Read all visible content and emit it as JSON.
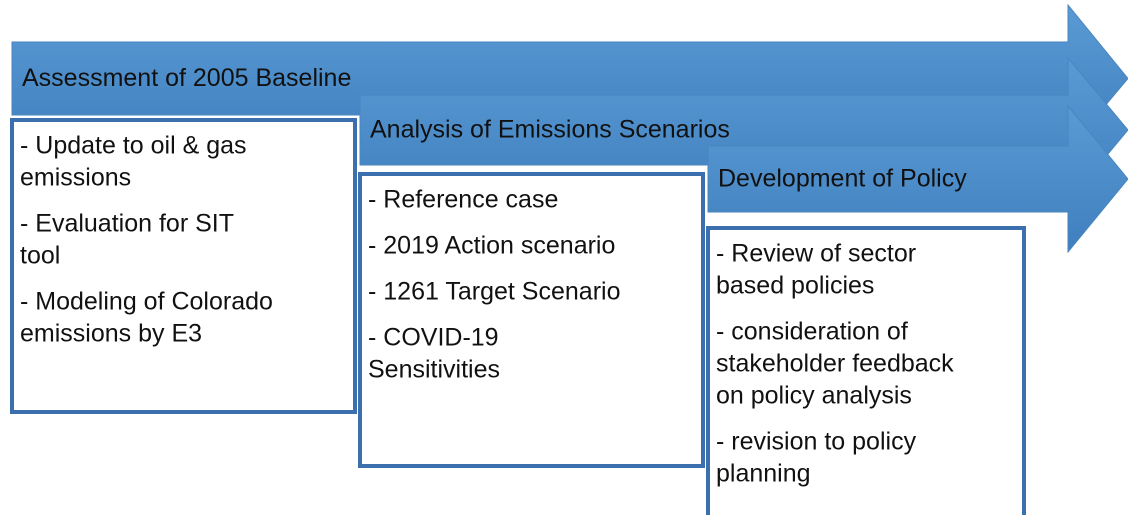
{
  "stages": [
    {
      "title": "Assessment of 2005 Baseline",
      "items": [
        {
          "lines": [
            "- Update to oil & gas",
            "emissions"
          ]
        },
        {
          "lines": [
            "- Evaluation for SIT",
            "tool"
          ]
        },
        {
          "lines": [
            "- Modeling of Colorado",
            "emissions by E3"
          ]
        }
      ]
    },
    {
      "title": "Analysis of Emissions Scenarios",
      "items": [
        {
          "lines": [
            "- Reference case"
          ]
        },
        {
          "lines": [
            "- 2019 Action scenario"
          ]
        },
        {
          "lines": [
            "- 1261 Target Scenario"
          ]
        },
        {
          "lines": [
            "- COVID-19",
            "Sensitivities"
          ]
        }
      ]
    },
    {
      "title": "Development of Policy",
      "items": [
        {
          "lines": [
            "- Review of sector",
            "based policies"
          ]
        },
        {
          "lines": [
            "- consideration of",
            "stakeholder feedback",
            "on policy analysis"
          ]
        },
        {
          "lines": [
            "- revision to policy",
            "planning"
          ]
        }
      ]
    }
  ]
}
